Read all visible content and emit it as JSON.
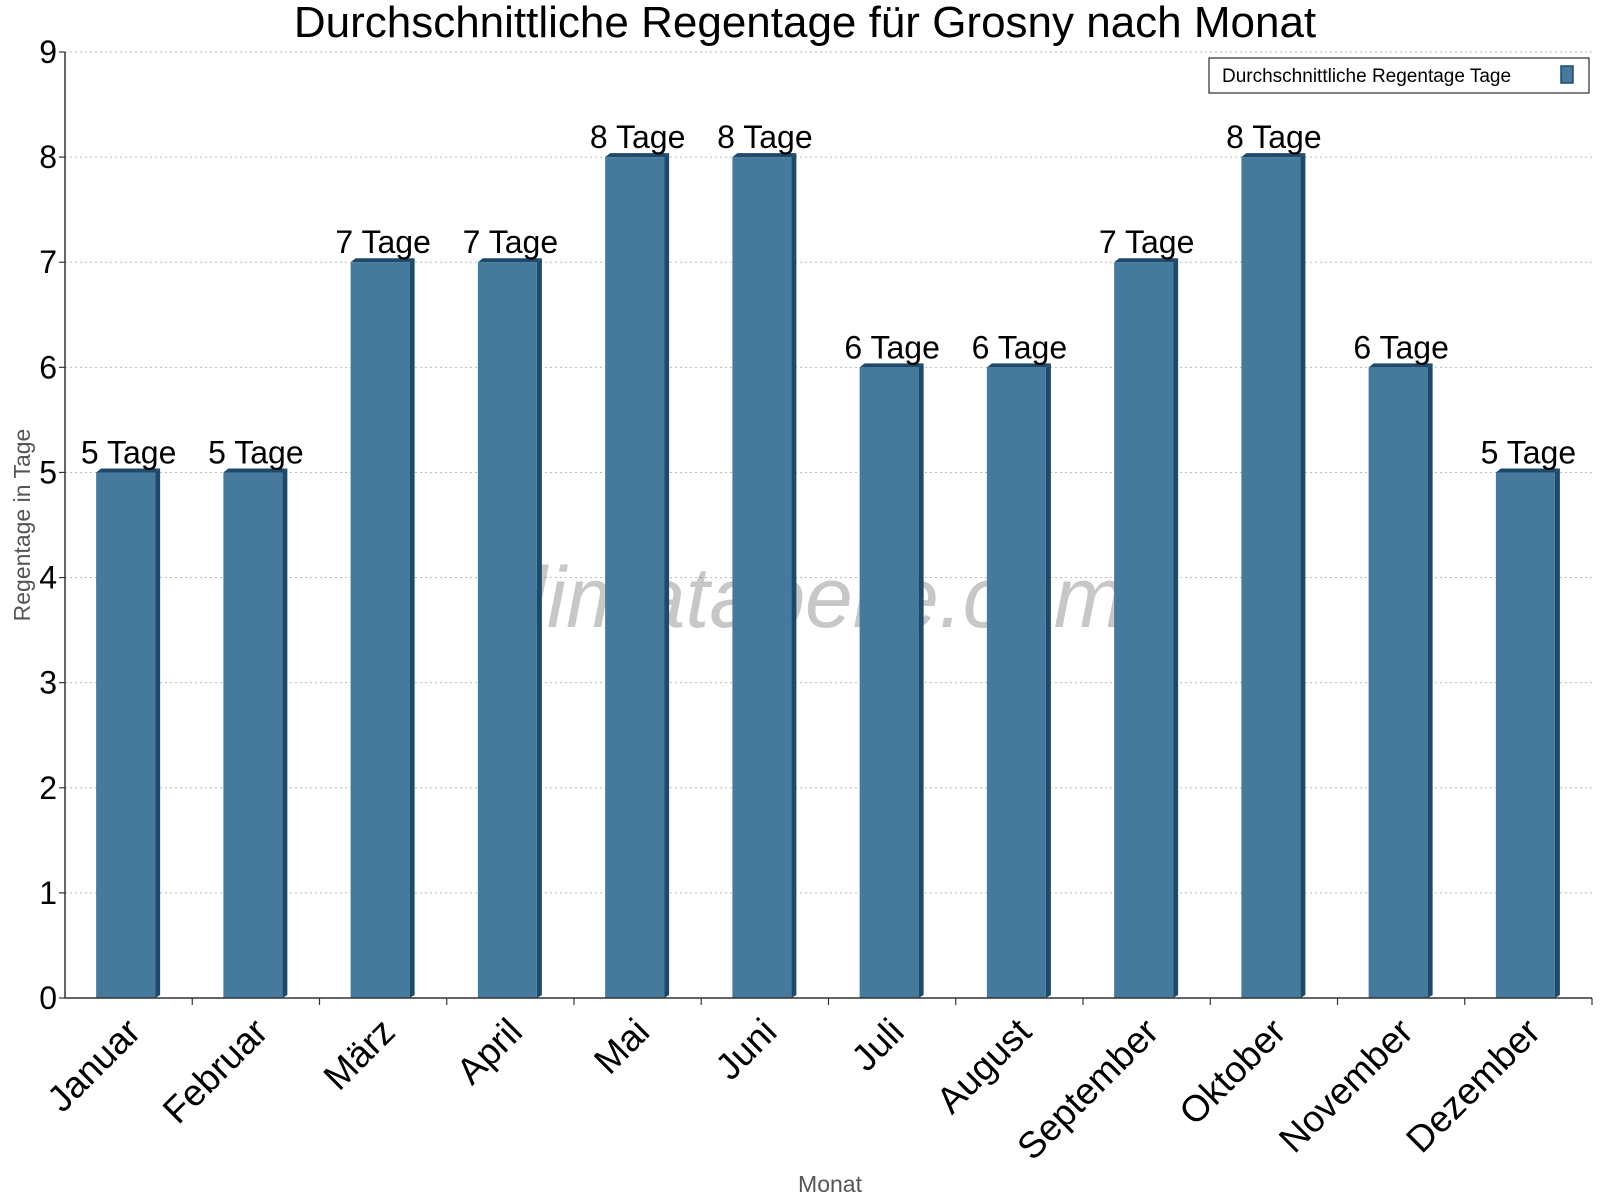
{
  "chart_data": {
    "type": "bar",
    "title": "Durchschnittliche Regentage für Grosny nach Monat",
    "xlabel": "Monat",
    "ylabel": "Regentage in Tage",
    "categories": [
      "Januar",
      "Februar",
      "März",
      "April",
      "Mai",
      "Juni",
      "Juli",
      "August",
      "September",
      "Oktober",
      "November",
      "Dezember"
    ],
    "series": [
      {
        "name": "Durchschnittliche Regentage Tage",
        "values": [
          5,
          5,
          7,
          7,
          8,
          8,
          6,
          6,
          7,
          8,
          6,
          5
        ],
        "labels": [
          "5 Tage",
          "5 Tage",
          "7 Tage",
          "7 Tage",
          "8 Tage",
          "8 Tage",
          "6 Tage",
          "6 Tage",
          "7 Tage",
          "8 Tage",
          "6 Tage",
          "5 Tage"
        ],
        "color": "#467a9c"
      }
    ],
    "ylim": [
      0,
      9
    ],
    "yticks": [
      "0",
      "1",
      "2",
      "3",
      "4",
      "5",
      "6",
      "7",
      "8",
      "9"
    ],
    "grid": true,
    "legend_position": "top-right",
    "watermark": "klimatabelle.com"
  }
}
